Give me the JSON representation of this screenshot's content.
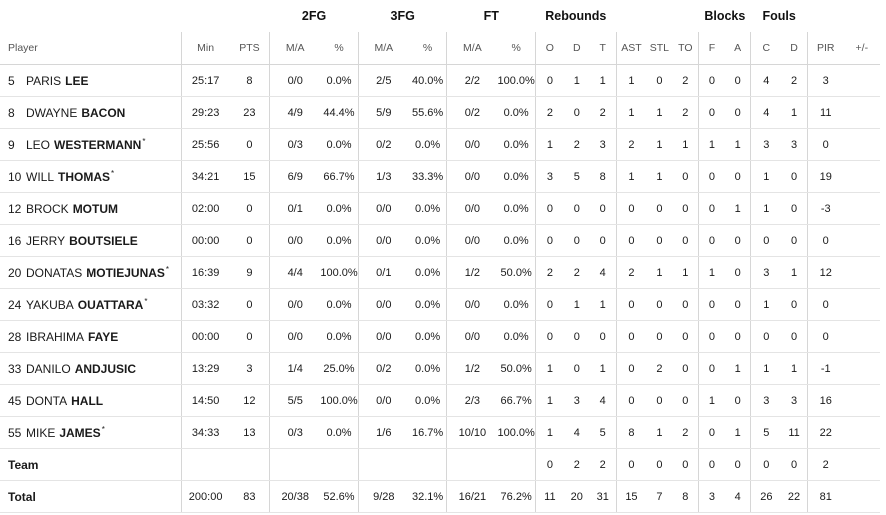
{
  "groups": {
    "fg2": "2FG",
    "fg3": "3FG",
    "ft": "FT",
    "rebounds": "Rebounds",
    "blocks": "Blocks",
    "fouls": "Fouls"
  },
  "columns": {
    "player": "Player",
    "min": "Min",
    "pts": "PTS",
    "fg2_ma": "M/A",
    "fg2_pct": "%",
    "fg3_ma": "M/A",
    "fg3_pct": "%",
    "ft_ma": "M/A",
    "ft_pct": "%",
    "reb_o": "O",
    "reb_d": "D",
    "reb_t": "T",
    "ast": "AST",
    "stl": "STL",
    "to": "TO",
    "blk_f": "F",
    "blk_a": "A",
    "foul_c": "C",
    "foul_d": "D",
    "pir": "PIR",
    "pm": "+/-"
  },
  "players": [
    {
      "num": "5",
      "first": "PARIS",
      "last": "LEE",
      "star": "",
      "min": "25:17",
      "pts": "8",
      "fg2": "0/0",
      "fg2p": "0.0%",
      "fg3": "2/5",
      "fg3p": "40.0%",
      "ft": "2/2",
      "ftp": "100.0%",
      "o": "0",
      "d": "1",
      "t": "1",
      "ast": "1",
      "stl": "0",
      "to": "2",
      "bf": "0",
      "ba": "0",
      "fc": "4",
      "fd": "2",
      "pir": "3",
      "pm": ""
    },
    {
      "num": "8",
      "first": "DWAYNE",
      "last": "BACON",
      "star": "",
      "min": "29:23",
      "pts": "23",
      "fg2": "4/9",
      "fg2p": "44.4%",
      "fg3": "5/9",
      "fg3p": "55.6%",
      "ft": "0/2",
      "ftp": "0.0%",
      "o": "2",
      "d": "0",
      "t": "2",
      "ast": "1",
      "stl": "1",
      "to": "2",
      "bf": "0",
      "ba": "0",
      "fc": "4",
      "fd": "1",
      "pir": "11",
      "pm": ""
    },
    {
      "num": "9",
      "first": "LEO",
      "last": "WESTERMANN",
      "star": "*",
      "min": "25:56",
      "pts": "0",
      "fg2": "0/3",
      "fg2p": "0.0%",
      "fg3": "0/2",
      "fg3p": "0.0%",
      "ft": "0/0",
      "ftp": "0.0%",
      "o": "1",
      "d": "2",
      "t": "3",
      "ast": "2",
      "stl": "1",
      "to": "1",
      "bf": "1",
      "ba": "1",
      "fc": "3",
      "fd": "3",
      "pir": "0",
      "pm": ""
    },
    {
      "num": "10",
      "first": "WILL",
      "last": "THOMAS",
      "star": "*",
      "min": "34:21",
      "pts": "15",
      "fg2": "6/9",
      "fg2p": "66.7%",
      "fg3": "1/3",
      "fg3p": "33.3%",
      "ft": "0/0",
      "ftp": "0.0%",
      "o": "3",
      "d": "5",
      "t": "8",
      "ast": "1",
      "stl": "1",
      "to": "0",
      "bf": "0",
      "ba": "0",
      "fc": "1",
      "fd": "0",
      "pir": "19",
      "pm": ""
    },
    {
      "num": "12",
      "first": "BROCK",
      "last": "MOTUM",
      "star": "",
      "min": "02:00",
      "pts": "0",
      "fg2": "0/1",
      "fg2p": "0.0%",
      "fg3": "0/0",
      "fg3p": "0.0%",
      "ft": "0/0",
      "ftp": "0.0%",
      "o": "0",
      "d": "0",
      "t": "0",
      "ast": "0",
      "stl": "0",
      "to": "0",
      "bf": "0",
      "ba": "1",
      "fc": "1",
      "fd": "0",
      "pir": "-3",
      "pm": ""
    },
    {
      "num": "16",
      "first": "JERRY",
      "last": "BOUTSIELE",
      "star": "",
      "min": "00:00",
      "pts": "0",
      "fg2": "0/0",
      "fg2p": "0.0%",
      "fg3": "0/0",
      "fg3p": "0.0%",
      "ft": "0/0",
      "ftp": "0.0%",
      "o": "0",
      "d": "0",
      "t": "0",
      "ast": "0",
      "stl": "0",
      "to": "0",
      "bf": "0",
      "ba": "0",
      "fc": "0",
      "fd": "0",
      "pir": "0",
      "pm": ""
    },
    {
      "num": "20",
      "first": "DONATAS",
      "last": "MOTIEJUNAS",
      "star": "*",
      "min": "16:39",
      "pts": "9",
      "fg2": "4/4",
      "fg2p": "100.0%",
      "fg3": "0/1",
      "fg3p": "0.0%",
      "ft": "1/2",
      "ftp": "50.0%",
      "o": "2",
      "d": "2",
      "t": "4",
      "ast": "2",
      "stl": "1",
      "to": "1",
      "bf": "1",
      "ba": "0",
      "fc": "3",
      "fd": "1",
      "pir": "12",
      "pm": ""
    },
    {
      "num": "24",
      "first": "YAKUBA",
      "last": "OUATTARA",
      "star": "*",
      "min": "03:32",
      "pts": "0",
      "fg2": "0/0",
      "fg2p": "0.0%",
      "fg3": "0/0",
      "fg3p": "0.0%",
      "ft": "0/0",
      "ftp": "0.0%",
      "o": "0",
      "d": "1",
      "t": "1",
      "ast": "0",
      "stl": "0",
      "to": "0",
      "bf": "0",
      "ba": "0",
      "fc": "1",
      "fd": "0",
      "pir": "0",
      "pm": ""
    },
    {
      "num": "28",
      "first": "IBRAHIMA",
      "last": "FAYE",
      "star": "",
      "min": "00:00",
      "pts": "0",
      "fg2": "0/0",
      "fg2p": "0.0%",
      "fg3": "0/0",
      "fg3p": "0.0%",
      "ft": "0/0",
      "ftp": "0.0%",
      "o": "0",
      "d": "0",
      "t": "0",
      "ast": "0",
      "stl": "0",
      "to": "0",
      "bf": "0",
      "ba": "0",
      "fc": "0",
      "fd": "0",
      "pir": "0",
      "pm": ""
    },
    {
      "num": "33",
      "first": "DANILO",
      "last": "ANDJUSIC",
      "star": "",
      "min": "13:29",
      "pts": "3",
      "fg2": "1/4",
      "fg2p": "25.0%",
      "fg3": "0/2",
      "fg3p": "0.0%",
      "ft": "1/2",
      "ftp": "50.0%",
      "o": "1",
      "d": "0",
      "t": "1",
      "ast": "0",
      "stl": "2",
      "to": "0",
      "bf": "0",
      "ba": "1",
      "fc": "1",
      "fd": "1",
      "pir": "-1",
      "pm": ""
    },
    {
      "num": "45",
      "first": "DONTA",
      "last": "HALL",
      "star": "",
      "min": "14:50",
      "pts": "12",
      "fg2": "5/5",
      "fg2p": "100.0%",
      "fg3": "0/0",
      "fg3p": "0.0%",
      "ft": "2/3",
      "ftp": "66.7%",
      "o": "1",
      "d": "3",
      "t": "4",
      "ast": "0",
      "stl": "0",
      "to": "0",
      "bf": "1",
      "ba": "0",
      "fc": "3",
      "fd": "3",
      "pir": "16",
      "pm": ""
    },
    {
      "num": "55",
      "first": "MIKE",
      "last": "JAMES",
      "star": "*",
      "min": "34:33",
      "pts": "13",
      "fg2": "0/3",
      "fg2p": "0.0%",
      "fg3": "1/6",
      "fg3p": "16.7%",
      "ft": "10/10",
      "ftp": "100.0%",
      "o": "1",
      "d": "4",
      "t": "5",
      "ast": "8",
      "stl": "1",
      "to": "2",
      "bf": "0",
      "ba": "1",
      "fc": "5",
      "fd": "11",
      "pir": "22",
      "pm": ""
    }
  ],
  "team": {
    "label": "Team",
    "min": "",
    "pts": "",
    "fg2": "",
    "fg2p": "",
    "fg3": "",
    "fg3p": "",
    "ft": "",
    "ftp": "",
    "o": "0",
    "d": "2",
    "t": "2",
    "ast": "0",
    "stl": "0",
    "to": "0",
    "bf": "0",
    "ba": "0",
    "fc": "0",
    "fd": "0",
    "pir": "2",
    "pm": ""
  },
  "total": {
    "label": "Total",
    "min": "200:00",
    "pts": "83",
    "fg2": "20/38",
    "fg2p": "52.6%",
    "fg3": "9/28",
    "fg3p": "32.1%",
    "ft": "16/21",
    "ftp": "76.2%",
    "o": "11",
    "d": "20",
    "t": "31",
    "ast": "15",
    "stl": "7",
    "to": "8",
    "bf": "3",
    "ba": "4",
    "fc": "26",
    "fd": "22",
    "pir": "81",
    "pm": ""
  }
}
